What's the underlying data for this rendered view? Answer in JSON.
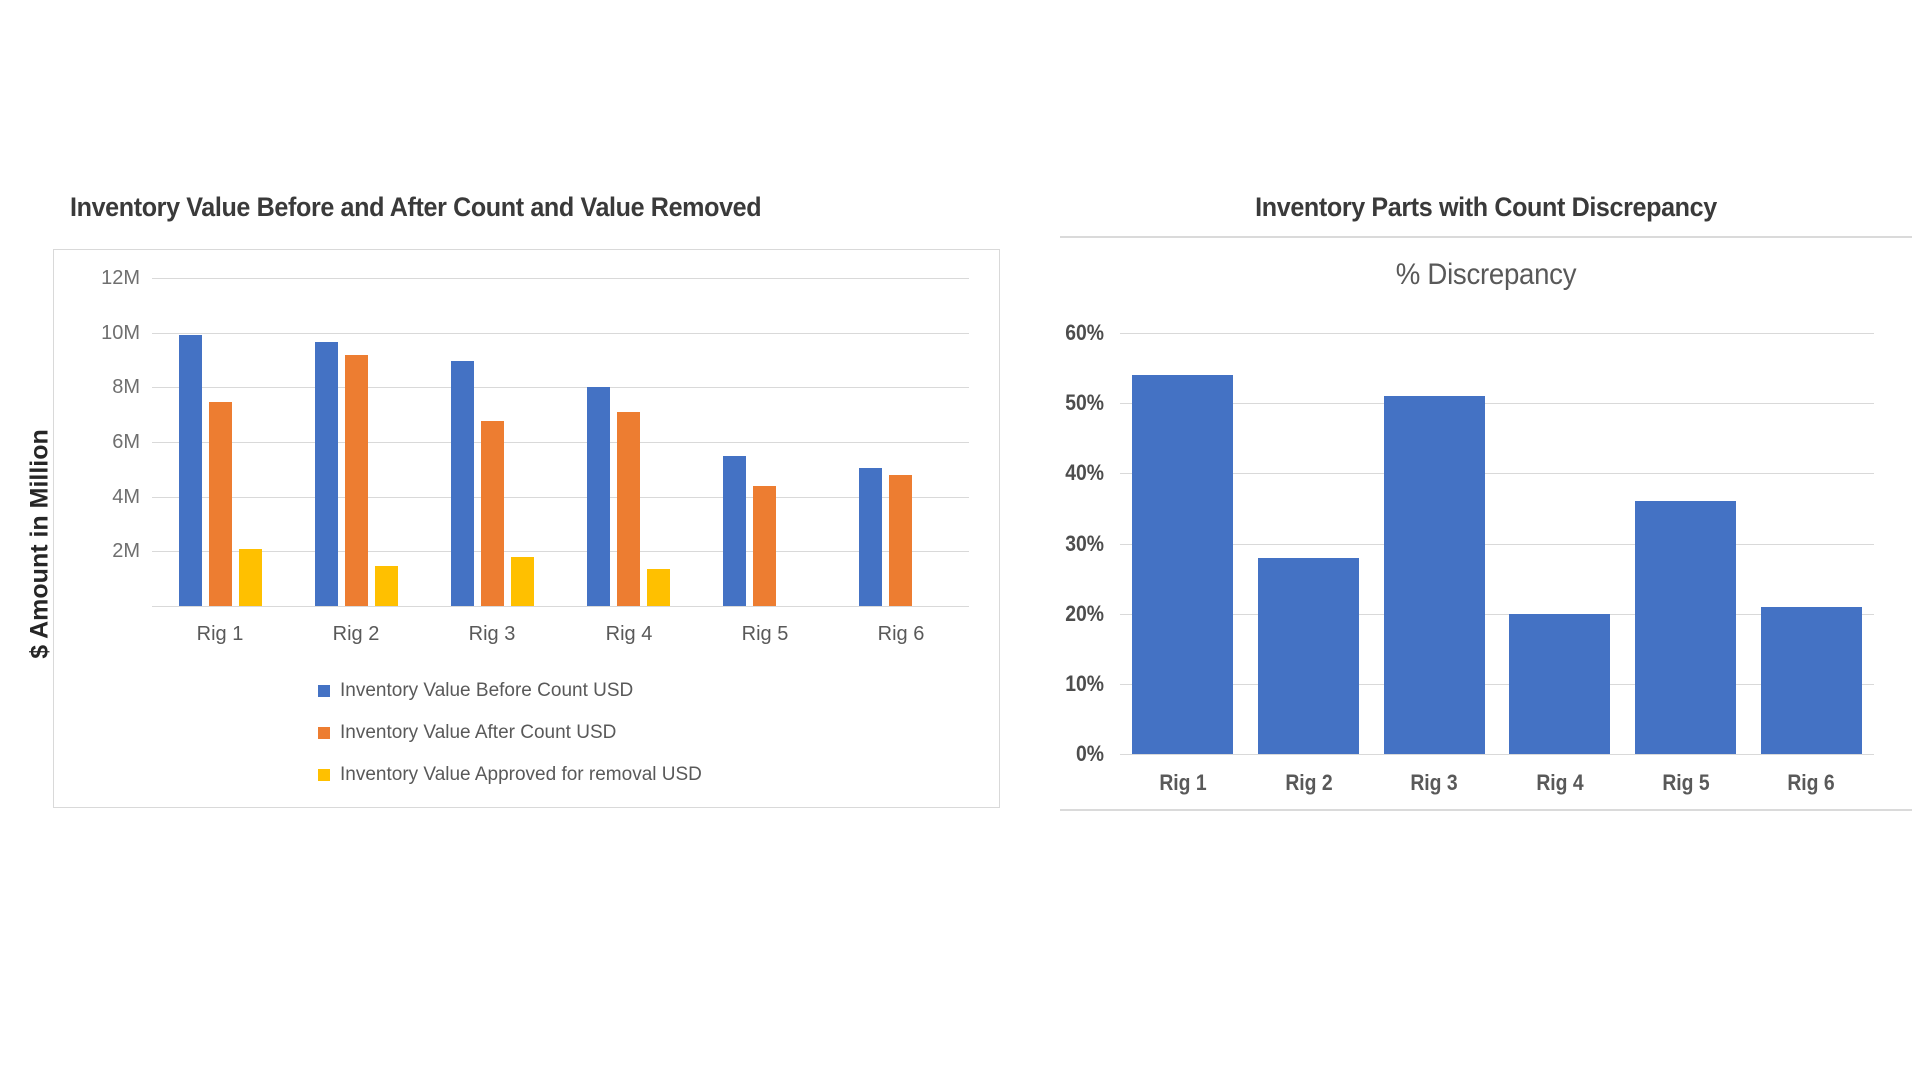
{
  "styles": {
    "background": "#ffffff",
    "grid_color": "#d9d9d9",
    "frame_border_color": "#d9d9d9",
    "separator_color": "#dadada",
    "title_color": "#3a3a3a",
    "subtitle_color": "#595959",
    "left_tick_color": "#6f6f6f",
    "left_category_color": "#595959",
    "legend_text_color": "#595959",
    "y_axis_title_color": "#262626",
    "right_tick_color": "#4d4d4d",
    "right_category_color": "#595959"
  },
  "chart_data": [
    {
      "id": "inventory-value-before-after-removed",
      "type": "bar",
      "title": "Inventory Value Before and After Count and Value Removed",
      "ylabel": "$ Amount in Million",
      "categories": [
        "Rig 1",
        "Rig 2",
        "Rig 3",
        "Rig 4",
        "Rig 5",
        "Rig 6"
      ],
      "series": [
        {
          "key": "before",
          "name": "Inventory Value Before Count USD",
          "color": "#4472C4",
          "values": [
            9.9,
            9.65,
            8.95,
            8.0,
            5.5,
            5.05
          ]
        },
        {
          "key": "after",
          "name": "Inventory Value After Count USD",
          "color": "#ED7D31",
          "values": [
            7.45,
            9.2,
            6.75,
            7.1,
            4.4,
            4.8
          ]
        },
        {
          "key": "removed",
          "name": "Inventory Value Approved for removal USD",
          "color": "#FFC000",
          "values": [
            2.1,
            1.45,
            1.8,
            1.35,
            0,
            0
          ]
        }
      ],
      "value_unit": "millions USD",
      "ylim": [
        0,
        12
      ],
      "yticks": [
        {
          "v": 12,
          "label": "12M"
        },
        {
          "v": 10,
          "label": "10M"
        },
        {
          "v": 8,
          "label": "8M"
        },
        {
          "v": 6,
          "label": "6M"
        },
        {
          "v": 4,
          "label": "4M"
        },
        {
          "v": 2,
          "label": "2M"
        }
      ],
      "grid": "horizontal",
      "legend_position": "bottom"
    },
    {
      "id": "count-discrepancy",
      "type": "bar",
      "title": "Inventory Parts with Count Discrepancy",
      "subtitle": "% Discrepancy",
      "categories": [
        "Rig 1",
        "Rig 2",
        "Rig 3",
        "Rig 4",
        "Rig 5",
        "Rig 6"
      ],
      "series": [
        {
          "key": "discrepancy",
          "name": "% Discrepancy",
          "color": "#4472C4",
          "values": [
            54,
            28,
            51,
            20,
            36,
            21
          ]
        }
      ],
      "value_unit": "percent",
      "ylim": [
        0,
        60
      ],
      "yticks": [
        {
          "v": 60,
          "label": "60%"
        },
        {
          "v": 50,
          "label": "50%"
        },
        {
          "v": 40,
          "label": "40%"
        },
        {
          "v": 30,
          "label": "30%"
        },
        {
          "v": 20,
          "label": "20%"
        },
        {
          "v": 10,
          "label": "10%"
        },
        {
          "v": 0,
          "label": "0%"
        }
      ],
      "grid": "horizontal",
      "legend_position": "none"
    }
  ]
}
